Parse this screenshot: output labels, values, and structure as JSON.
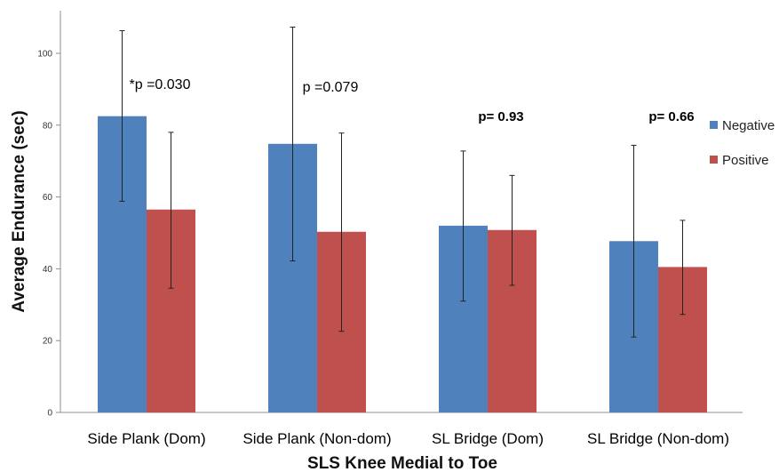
{
  "chart_data": {
    "type": "bar",
    "xlabel": "SLS Knee Medial to Toe",
    "ylabel": "Average Endurance (sec)",
    "ylim": [
      0,
      110
    ],
    "yticks": [
      0,
      20,
      40,
      60,
      80,
      100
    ],
    "categories": [
      "Side Plank (Dom)",
      "Side Plank (Non-dom)",
      "SL Bridge (Dom)",
      "SL Bridge (Non-dom)"
    ],
    "series": [
      {
        "name": "Negative",
        "color": "#4f81bd",
        "values": [
          82.5,
          74.8,
          52.0,
          47.7
        ],
        "error_low": [
          58.8,
          42.2,
          31.0,
          21.0
        ],
        "error_high": [
          106.3,
          107.3,
          72.8,
          74.4
        ]
      },
      {
        "name": "Positive",
        "color": "#c0504d",
        "values": [
          56.5,
          50.3,
          50.8,
          40.5
        ],
        "error_low": [
          34.6,
          22.6,
          35.4,
          27.3
        ],
        "error_high": [
          78.0,
          77.8,
          66.0,
          53.5
        ]
      }
    ],
    "annotations": [
      {
        "text": "*p =0.030",
        "category": 0,
        "bold": false
      },
      {
        "text": "p =0.079",
        "category": 1,
        "bold": false
      },
      {
        "text": "p= 0.93",
        "category": 2,
        "bold": true
      },
      {
        "text": "p= 0.66",
        "category": 3,
        "bold": true
      }
    ],
    "legend": {
      "position": "right"
    },
    "grid": false
  }
}
